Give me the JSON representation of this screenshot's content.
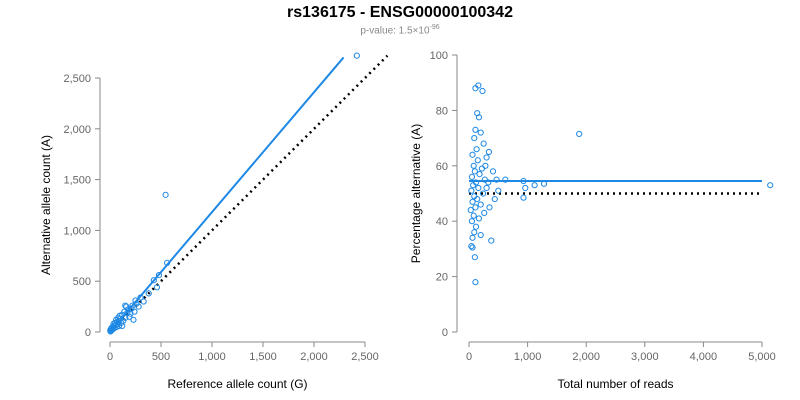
{
  "title": "rs136175 - ENSG00000100342",
  "subtitle": {
    "prefix": "p-value: 1.5×10",
    "exponent": "-96"
  },
  "colors": {
    "points": "#1e88e5",
    "fit": "#1e88e5",
    "reference": "#000000",
    "axis": "#888888"
  },
  "chart_data": [
    {
      "type": "scatter",
      "xlabel": "Reference allele count (G)",
      "ylabel": "Alternative allele count (A)",
      "xlim": [
        0,
        2500
      ],
      "ylim": [
        0,
        2500
      ],
      "xticks": [
        0,
        500,
        1000,
        1500,
        2000,
        2500
      ],
      "xtick_labels": [
        "0",
        "500",
        "1,000",
        "1,500",
        "2,000",
        "2,500"
      ],
      "yticks": [
        0,
        500,
        1000,
        1500,
        2000,
        2500
      ],
      "ytick_labels": [
        "0",
        "500",
        "1,000",
        "1,500",
        "2,000",
        "2,500"
      ],
      "points": [
        [
          2420,
          2720
        ],
        [
          545,
          1350
        ],
        [
          430,
          510
        ],
        [
          480,
          560
        ],
        [
          460,
          440
        ],
        [
          560,
          680
        ],
        [
          380,
          380
        ],
        [
          300,
          340
        ],
        [
          250,
          310
        ],
        [
          220,
          260
        ],
        [
          200,
          180
        ],
        [
          180,
          220
        ],
        [
          160,
          250
        ],
        [
          150,
          140
        ],
        [
          140,
          200
        ],
        [
          130,
          110
        ],
        [
          120,
          170
        ],
        [
          110,
          90
        ],
        [
          100,
          130
        ],
        [
          95,
          160
        ],
        [
          90,
          60
        ],
        [
          85,
          110
        ],
        [
          80,
          140
        ],
        [
          75,
          80
        ],
        [
          70,
          100
        ],
        [
          65,
          50
        ],
        [
          60,
          120
        ],
        [
          55,
          70
        ],
        [
          50,
          90
        ],
        [
          45,
          40
        ],
        [
          40,
          60
        ],
        [
          35,
          80
        ],
        [
          30,
          30
        ],
        [
          25,
          50
        ],
        [
          20,
          20
        ],
        [
          15,
          40
        ],
        [
          10,
          10
        ],
        [
          8,
          25
        ],
        [
          5,
          5
        ],
        [
          3,
          15
        ],
        [
          210,
          230
        ],
        [
          240,
          200
        ],
        [
          190,
          150
        ],
        [
          170,
          190
        ],
        [
          260,
          280
        ],
        [
          280,
          250
        ],
        [
          230,
          120
        ],
        [
          150,
          260
        ],
        [
          120,
          60
        ],
        [
          330,
          300
        ]
      ],
      "fit_line": {
        "slope": 1.18,
        "intercept": 0,
        "x_range": [
          0,
          2290
        ]
      },
      "reference_line": {
        "slope": 1.0,
        "intercept": 0,
        "x_range": [
          0,
          2720
        ]
      },
      "grid": false
    },
    {
      "type": "scatter",
      "xlabel": "Total number of reads",
      "ylabel": "Percentage alternative (A)",
      "xlim": [
        0,
        5000
      ],
      "ylim": [
        0,
        100
      ],
      "xticks": [
        0,
        1000,
        2000,
        3000,
        4000,
        5000
      ],
      "xtick_labels": [
        "0",
        "1,000",
        "2,000",
        "3,000",
        "4,000",
        "5,000"
      ],
      "yticks": [
        0,
        20,
        40,
        60,
        80,
        100
      ],
      "ytick_labels": [
        "0",
        "20",
        "40",
        "60",
        "80",
        "100"
      ],
      "points": [
        [
          5140,
          53
        ],
        [
          1880,
          71.5
        ],
        [
          1280,
          53.5
        ],
        [
          930,
          54.5
        ],
        [
          930,
          48.5
        ],
        [
          960,
          52
        ],
        [
          1120,
          53
        ],
        [
          620,
          55
        ],
        [
          470,
          55
        ],
        [
          380,
          33
        ],
        [
          160,
          89
        ],
        [
          110,
          88
        ],
        [
          230,
          87
        ],
        [
          140,
          79
        ],
        [
          170,
          77.5
        ],
        [
          110,
          73
        ],
        [
          200,
          72
        ],
        [
          90,
          70
        ],
        [
          250,
          68
        ],
        [
          130,
          66
        ],
        [
          60,
          64
        ],
        [
          300,
          63
        ],
        [
          150,
          62
        ],
        [
          80,
          60
        ],
        [
          220,
          59
        ],
        [
          100,
          58
        ],
        [
          180,
          57
        ],
        [
          50,
          56
        ],
        [
          270,
          55
        ],
        [
          120,
          54
        ],
        [
          70,
          53
        ],
        [
          160,
          52
        ],
        [
          40,
          51
        ],
        [
          240,
          50
        ],
        [
          90,
          49
        ],
        [
          140,
          48
        ],
        [
          60,
          47
        ],
        [
          200,
          46
        ],
        [
          110,
          45
        ],
        [
          30,
          44
        ],
        [
          260,
          43
        ],
        [
          80,
          42
        ],
        [
          170,
          41
        ],
        [
          50,
          40
        ],
        [
          120,
          38
        ],
        [
          90,
          36
        ],
        [
          200,
          35
        ],
        [
          60,
          34
        ],
        [
          40,
          31
        ],
        [
          60,
          30.5
        ],
        [
          100,
          27
        ],
        [
          110,
          18
        ],
        [
          340,
          65
        ],
        [
          410,
          58
        ],
        [
          500,
          51
        ],
        [
          350,
          45
        ],
        [
          440,
          48
        ],
        [
          300,
          52
        ],
        [
          280,
          60
        ],
        [
          330,
          54
        ]
      ],
      "fit_line": {
        "y": 54.5,
        "x_range": [
          0,
          5000
        ]
      },
      "reference_line": {
        "y": 50,
        "x_range": [
          0,
          5000
        ]
      },
      "grid": false
    }
  ]
}
